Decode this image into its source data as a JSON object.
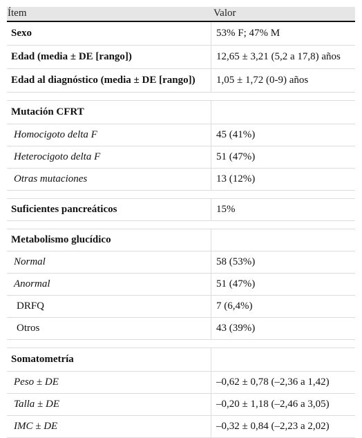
{
  "header": {
    "item": "Ítem",
    "value": "Valor"
  },
  "rows": {
    "sexo": {
      "label": "Sexo",
      "value": "53% F; 47% M"
    },
    "edad": {
      "label": "Edad (media ± DE [rango])",
      "value": "12,65 ± 3,21 (5,2 a 17,8) años"
    },
    "edad_diag": {
      "label": "Edad al diagnóstico (media ± DE [rango])",
      "value": "1,05 ± 1,72 (0-9) años"
    },
    "mutacion": {
      "label": "Mutación CFRT",
      "value": ""
    },
    "homo": {
      "label": "Homocigoto delta F",
      "value": "45 (41%)"
    },
    "hetero": {
      "label": "Heterocigoto delta F",
      "value": "51 (47%)"
    },
    "otras_mut": {
      "label": "Otras mutaciones",
      "value": "13 (12%)"
    },
    "suficientes": {
      "label": "Suficientes pancreáticos",
      "value": "15%"
    },
    "metabolismo": {
      "label": "Metabolismo glucídico",
      "value": ""
    },
    "normal": {
      "label": "Normal",
      "value": "58 (53%)"
    },
    "anormal": {
      "label": "Anormal",
      "value": "51 (47%)"
    },
    "drfq": {
      "label": "DRFQ",
      "value": "7 (6,4%)"
    },
    "otros": {
      "label": "Otros",
      "value": "43 (39%)"
    },
    "somato": {
      "label": "Somatometría",
      "value": ""
    },
    "peso": {
      "label": "Peso ± DE",
      "value": "–0,62 ± 0,78 (–2,36 a 1,42)"
    },
    "talla": {
      "label": "Talla ± DE",
      "value": "–0,20 ± 1,18 (–2,46 a 3,05)"
    },
    "imc": {
      "label": "IMC ± DE",
      "value": "–0,32 ± 0,84 (–2,23 a 2,02)"
    }
  }
}
